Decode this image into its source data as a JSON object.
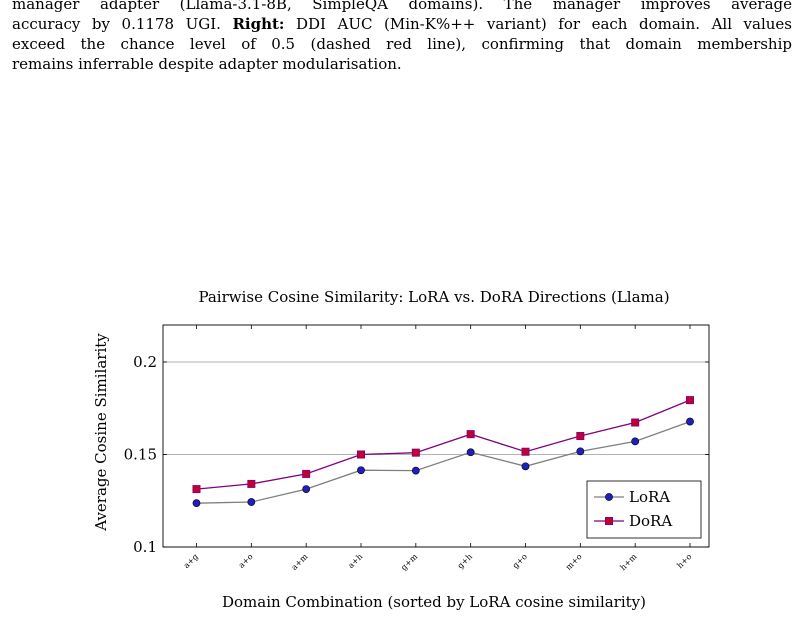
{
  "caption": {
    "line1": "manager adapter (Llama-3.1-8B, SimpleQA domains). The manager improves average",
    "line2_pre": "accuracy by 0.1178 UGI. ",
    "line2_bold": "Right:",
    "line2_post": " DDI AUC (Min-K%++ variant) for each domain. All values",
    "line3": "exceed the chance level of 0.5 (dashed red line), confirming that domain membership",
    "line4": "remains inferrable despite adapter modularisation."
  },
  "chart_data": {
    "type": "line",
    "title": "Pairwise Cosine Similarity: LoRA vs. DoRA Directions (Llama)",
    "xlabel": "Domain Combination (sorted by LoRA cosine similarity)",
    "ylabel": "Average Cosine Similarity",
    "categories": [
      "a+g",
      "a+o",
      "a+m",
      "a+h",
      "g+m",
      "g+h",
      "g+o",
      "m+o",
      "h+m",
      "h+o"
    ],
    "ylim": [
      0.1,
      0.22
    ],
    "yticks": [
      "0.1",
      "0.15",
      "0.2"
    ],
    "ytick_values": [
      0.1,
      0.15,
      0.2
    ],
    "grid": "horizontal",
    "legend_position": "bottom-right",
    "series": [
      {
        "name": "LoRA",
        "marker": "circle",
        "line_color": "#7f7f7f",
        "marker_color": "#1f1fbf",
        "values": [
          0.1237,
          0.1243,
          0.1313,
          0.1415,
          0.1413,
          0.1512,
          0.1436,
          0.1517,
          0.1571,
          0.1678
        ]
      },
      {
        "name": "DoRA",
        "marker": "square",
        "line_color": "#800080",
        "marker_color": "#c00030",
        "values": [
          0.1313,
          0.1341,
          0.1395,
          0.15,
          0.151,
          0.161,
          0.1515,
          0.16,
          0.1673,
          0.1794
        ]
      }
    ]
  }
}
